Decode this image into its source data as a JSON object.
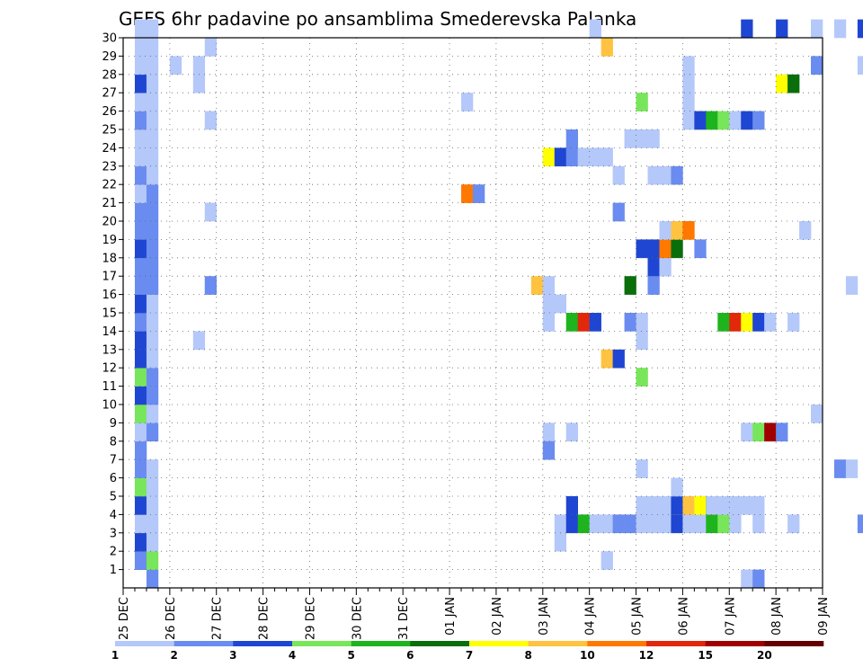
{
  "chart_data": {
    "type": "heatmap",
    "title": "GEFS 6hr padavine po ansamblima Smederevska Palanka",
    "xlabel": "",
    "ylabel": "",
    "x_tick_labels": [
      "25 DEC",
      "26 DEC",
      "27 DEC",
      "28 DEC",
      "29 DEC",
      "30 DEC",
      "31 DEC",
      "01 JAN",
      "02 JAN",
      "03 JAN",
      "04 JAN",
      "05 JAN",
      "06 JAN",
      "07 JAN",
      "08 JAN",
      "09 JAN"
    ],
    "y_tick_labels": [
      "1",
      "2",
      "3",
      "4",
      "5",
      "6",
      "7",
      "8",
      "9",
      "10",
      "11",
      "12",
      "13",
      "14",
      "15",
      "16",
      "17",
      "18",
      "19",
      "20",
      "21",
      "22",
      "23",
      "24",
      "25",
      "26",
      "27",
      "28",
      "29",
      "30"
    ],
    "ylim": [
      0,
      30
    ],
    "steps_per_day": 4,
    "grid": true,
    "legend": {
      "placement": "bottom",
      "labels": [
        "1",
        "2",
        "3",
        "4",
        "5",
        "6",
        "7",
        "8",
        "10",
        "12",
        "15",
        "20"
      ],
      "colors": [
        "#b4c8fa",
        "#6a8cf0",
        "#1e46d2",
        "#78e65a",
        "#1eb41e",
        "#0a6e0a",
        "#ffff00",
        "#ffc341",
        "#ff7800",
        "#e1280a",
        "#a00000",
        "#640000"
      ]
    },
    "cells": [
      [
        1,
        3,
        1
      ],
      [
        1,
        2,
        1
      ],
      [
        1,
        3,
        2
      ],
      [
        1,
        1,
        3
      ],
      [
        1,
        3,
        4
      ],
      [
        1,
        4,
        5
      ],
      [
        1,
        2,
        6
      ],
      [
        1,
        2,
        7
      ],
      [
        1,
        1,
        8
      ],
      [
        1,
        4,
        9
      ],
      [
        1,
        3,
        10
      ],
      [
        1,
        4,
        11
      ],
      [
        1,
        3,
        12
      ],
      [
        1,
        3,
        13
      ],
      [
        1,
        2,
        14
      ],
      [
        1,
        3,
        15
      ],
      [
        1,
        2,
        16
      ],
      [
        1,
        2,
        17
      ],
      [
        1,
        3,
        18
      ],
      [
        1,
        2,
        19
      ],
      [
        1,
        2,
        20
      ],
      [
        1,
        1,
        21
      ],
      [
        1,
        2,
        22
      ],
      [
        1,
        1,
        23
      ],
      [
        1,
        1,
        24
      ],
      [
        1,
        2,
        25
      ],
      [
        1,
        1,
        26
      ],
      [
        1,
        3,
        27
      ],
      [
        1,
        1,
        28
      ],
      [
        1,
        1,
        29
      ],
      [
        1,
        1,
        30
      ],
      [
        2,
        2,
        0
      ],
      [
        2,
        4,
        1
      ],
      [
        2,
        1,
        2
      ],
      [
        2,
        1,
        3
      ],
      [
        2,
        1,
        4
      ],
      [
        2,
        1,
        5
      ],
      [
        2,
        1,
        6
      ],
      [
        2,
        2,
        8
      ],
      [
        2,
        1,
        9
      ],
      [
        2,
        2,
        10
      ],
      [
        2,
        2,
        11
      ],
      [
        2,
        1,
        12
      ],
      [
        2,
        1,
        13
      ],
      [
        2,
        1,
        14
      ],
      [
        2,
        1,
        15
      ],
      [
        2,
        2,
        16
      ],
      [
        2,
        2,
        17
      ],
      [
        2,
        2,
        18
      ],
      [
        2,
        2,
        19
      ],
      [
        2,
        2,
        20
      ],
      [
        2,
        2,
        21
      ],
      [
        2,
        1,
        22
      ],
      [
        2,
        1,
        23
      ],
      [
        2,
        1,
        24
      ],
      [
        2,
        1,
        25
      ],
      [
        2,
        1,
        26
      ],
      [
        2,
        1,
        27
      ],
      [
        2,
        1,
        28
      ],
      [
        2,
        1,
        29
      ],
      [
        2,
        1,
        30
      ],
      [
        4,
        1,
        28
      ],
      [
        6,
        1,
        27
      ],
      [
        6,
        1,
        28
      ],
      [
        6,
        1,
        13
      ],
      [
        7,
        1,
        29
      ],
      [
        7,
        1,
        25
      ],
      [
        7,
        1,
        20
      ],
      [
        7,
        2,
        16
      ],
      [
        29,
        1,
        26
      ],
      [
        29,
        9,
        21
      ],
      [
        30,
        2,
        21
      ],
      [
        35,
        8,
        16
      ],
      [
        36,
        1,
        16
      ],
      [
        36,
        1,
        15
      ],
      [
        36,
        1,
        14
      ],
      [
        36,
        1,
        8
      ],
      [
        36,
        2,
        7
      ],
      [
        36,
        7,
        23
      ],
      [
        37,
        1,
        15
      ],
      [
        37,
        1,
        3
      ],
      [
        37,
        1,
        2
      ],
      [
        37,
        3,
        23
      ],
      [
        38,
        3,
        4
      ],
      [
        38,
        3,
        3
      ],
      [
        38,
        1,
        8
      ],
      [
        38,
        5,
        14
      ],
      [
        38,
        2,
        23
      ],
      [
        38,
        2,
        24
      ],
      [
        39,
        5,
        3
      ],
      [
        39,
        10,
        14
      ],
      [
        39,
        1,
        23
      ],
      [
        40,
        1,
        3
      ],
      [
        40,
        3,
        14
      ],
      [
        40,
        1,
        23
      ],
      [
        40,
        1,
        30
      ],
      [
        41,
        1,
        3
      ],
      [
        41,
        8,
        29
      ],
      [
        41,
        1,
        1
      ],
      [
        41,
        8,
        12
      ],
      [
        41,
        1,
        23
      ],
      [
        42,
        2,
        3
      ],
      [
        42,
        3,
        12
      ],
      [
        42,
        2,
        20
      ],
      [
        42,
        1,
        22
      ],
      [
        43,
        2,
        3
      ],
      [
        43,
        1,
        24
      ],
      [
        43,
        2,
        14
      ],
      [
        43,
        6,
        16
      ],
      [
        44,
        1,
        3
      ],
      [
        44,
        1,
        4
      ],
      [
        44,
        1,
        6
      ],
      [
        44,
        1,
        13
      ],
      [
        44,
        3,
        18
      ],
      [
        44,
        1,
        24
      ],
      [
        44,
        4,
        11
      ],
      [
        44,
        4,
        26
      ],
      [
        44,
        1,
        14
      ],
      [
        45,
        1,
        3
      ],
      [
        45,
        1,
        4
      ],
      [
        45,
        3,
        17
      ],
      [
        45,
        3,
        18
      ],
      [
        45,
        1,
        24
      ],
      [
        45,
        1,
        22
      ],
      [
        45,
        2,
        16
      ],
      [
        46,
        1,
        3
      ],
      [
        46,
        1,
        4
      ],
      [
        46,
        1,
        17
      ],
      [
        46,
        1,
        22
      ],
      [
        46,
        9,
        18
      ],
      [
        46,
        1,
        19
      ],
      [
        47,
        3,
        3
      ],
      [
        47,
        1,
        4
      ],
      [
        47,
        3,
        4
      ],
      [
        47,
        6,
        18
      ],
      [
        47,
        2,
        22
      ],
      [
        47,
        8,
        19
      ],
      [
        47,
        1,
        5
      ],
      [
        48,
        1,
        3
      ],
      [
        48,
        8,
        4
      ],
      [
        48,
        9,
        19
      ],
      [
        48,
        1,
        25
      ],
      [
        48,
        1,
        26
      ],
      [
        48,
        1,
        27
      ],
      [
        48,
        1,
        28
      ],
      [
        49,
        1,
        3
      ],
      [
        49,
        1,
        4
      ],
      [
        49,
        7,
        4
      ],
      [
        49,
        3,
        25
      ],
      [
        49,
        2,
        18
      ],
      [
        50,
        5,
        3
      ],
      [
        50,
        6,
        4
      ],
      [
        50,
        5,
        25
      ],
      [
        50,
        1,
        4
      ],
      [
        51,
        4,
        3
      ],
      [
        51,
        1,
        4
      ],
      [
        51,
        4,
        25
      ],
      [
        51,
        5,
        14
      ],
      [
        52,
        1,
        3
      ],
      [
        52,
        1,
        4
      ],
      [
        52,
        1,
        25
      ],
      [
        52,
        10,
        14
      ],
      [
        53,
        1,
        4
      ],
      [
        53,
        3,
        25
      ],
      [
        53,
        1,
        0
      ],
      [
        53,
        3,
        30
      ],
      [
        53,
        1,
        8
      ],
      [
        53,
        7,
        14
      ],
      [
        54,
        1,
        4
      ],
      [
        54,
        1,
        3
      ],
      [
        54,
        2,
        25
      ],
      [
        54,
        4,
        8
      ],
      [
        54,
        3,
        14
      ],
      [
        54,
        2,
        0
      ],
      [
        55,
        11,
        8
      ],
      [
        55,
        1,
        14
      ],
      [
        56,
        2,
        8
      ],
      [
        56,
        7,
        27
      ],
      [
        57,
        6,
        27
      ],
      [
        56,
        3,
        30
      ],
      [
        57,
        1,
        3
      ],
      [
        57,
        1,
        14
      ],
      [
        58,
        1,
        19
      ],
      [
        59,
        1,
        28
      ],
      [
        59,
        2,
        28
      ],
      [
        59,
        1,
        30
      ],
      [
        59,
        1,
        9
      ],
      [
        61,
        1,
        30
      ],
      [
        61,
        2,
        6
      ],
      [
        62,
        1,
        16
      ],
      [
        62,
        1,
        6
      ],
      [
        63,
        2,
        3
      ],
      [
        63,
        3,
        30
      ],
      [
        63,
        1,
        28
      ],
      [
        64,
        3,
        6
      ],
      [
        64,
        1,
        30
      ],
      [
        64,
        1,
        13
      ],
      [
        64,
        1,
        4
      ],
      [
        65,
        1,
        14
      ],
      [
        66,
        1,
        14
      ],
      [
        67,
        1,
        14
      ],
      [
        66,
        2,
        11
      ],
      [
        67,
        1,
        11
      ],
      [
        68,
        1,
        11
      ],
      [
        67,
        2,
        22
      ],
      [
        67,
        2,
        0
      ],
      [
        67,
        1,
        30
      ],
      [
        68,
        1,
        3
      ],
      [
        69,
        1,
        3
      ],
      [
        69,
        1,
        14
      ],
      [
        69,
        1,
        16
      ],
      [
        69,
        2,
        16
      ],
      [
        70,
        1,
        1
      ],
      [
        70,
        1,
        20
      ],
      [
        70,
        1,
        24
      ],
      [
        70,
        4,
        14
      ],
      [
        71,
        3,
        3
      ],
      [
        71,
        7,
        25
      ],
      [
        70,
        1,
        3
      ]
    ]
  }
}
